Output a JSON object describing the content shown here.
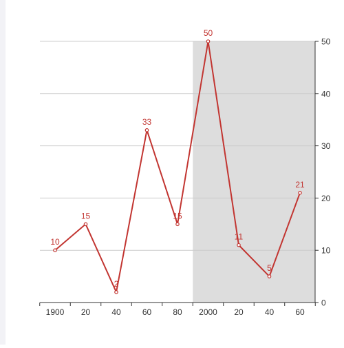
{
  "chart_data": {
    "type": "line",
    "categories": [
      "1900",
      "20",
      "40",
      "60",
      "80",
      "2000",
      "20",
      "40",
      "60"
    ],
    "series": [
      {
        "values": [
          10,
          15,
          2,
          33,
          15,
          50,
          11,
          5,
          21
        ]
      }
    ],
    "data_labels": [
      "10",
      "15",
      "2",
      "33",
      "15",
      "50",
      "11",
      "5",
      "21"
    ],
    "y_axis": {
      "position": "right",
      "min": 0,
      "max": 50,
      "ticks": [
        "0",
        "10",
        "20",
        "30",
        "40",
        "50"
      ]
    },
    "highlight_band": {
      "from_category_index": 4.5,
      "to_category_index": 8.99,
      "color": "#dddddd"
    },
    "grid": true,
    "colors": {
      "series": "#c23531",
      "axis": "#333333",
      "grid": "#cccccc",
      "label": "#c23531"
    }
  }
}
